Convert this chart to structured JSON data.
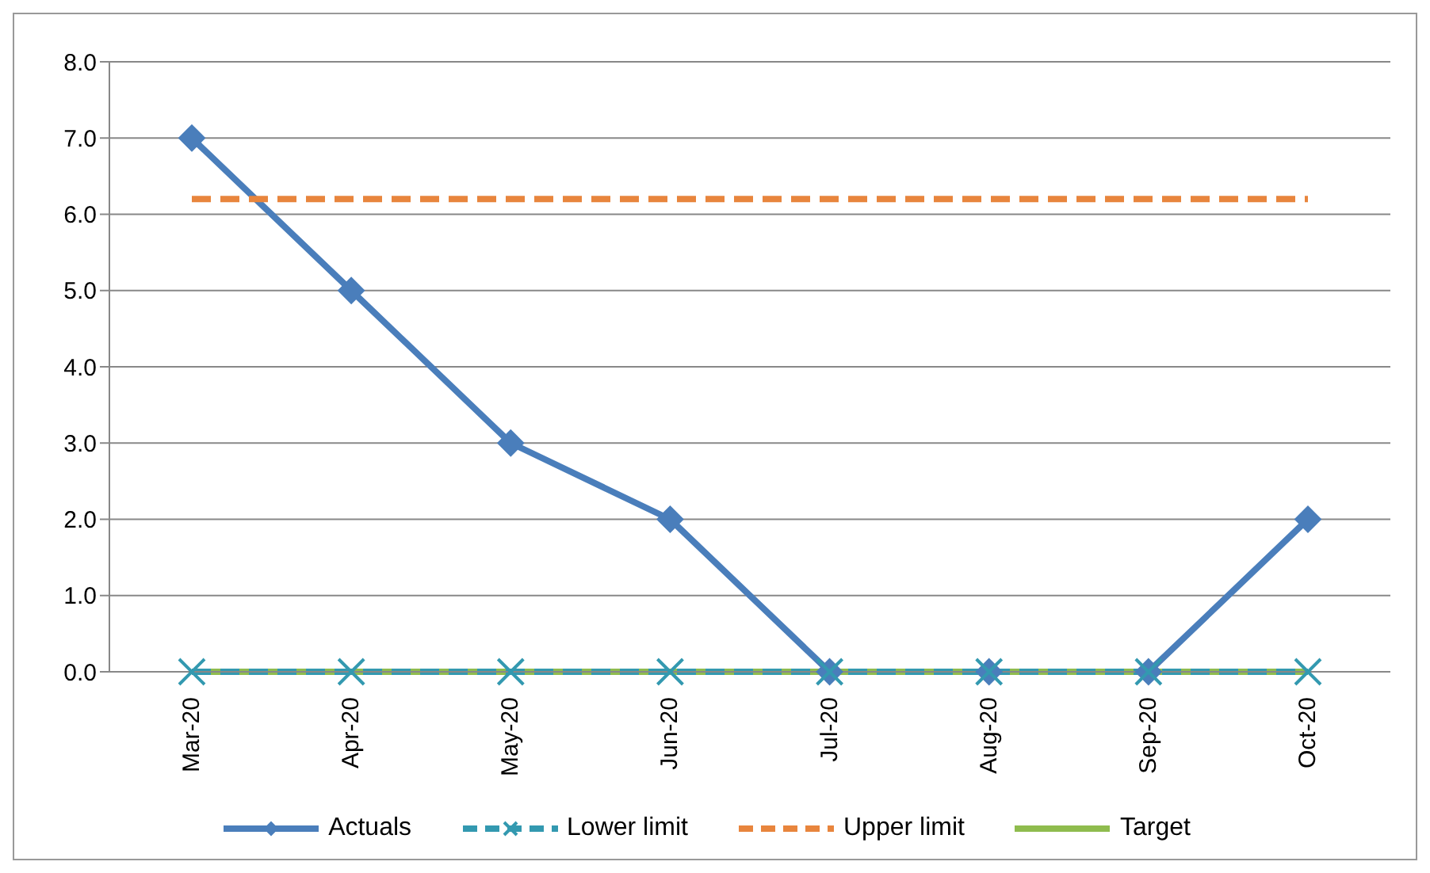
{
  "chart_data": {
    "type": "line",
    "categories": [
      "Mar-20",
      "Apr-20",
      "May-20",
      "Jun-20",
      "Jul-20",
      "Aug-20",
      "Sep-20",
      "Oct-20"
    ],
    "series": [
      {
        "name": "Actuals",
        "color": "#4a7ebb",
        "values": [
          7,
          5,
          3,
          2,
          0,
          0,
          0,
          2
        ],
        "marker": "diamond",
        "line_style": "solid"
      },
      {
        "name": "Lower limit",
        "color": "#3399b0",
        "values": [
          0,
          0,
          0,
          0,
          0,
          0,
          0,
          0
        ],
        "marker": "cross",
        "line_style": "dashed"
      },
      {
        "name": "Upper limit",
        "color": "#e8853d",
        "values": [
          6.2,
          6.2,
          6.2,
          6.2,
          6.2,
          6.2,
          6.2,
          6.2
        ],
        "marker": "none",
        "line_style": "dashed"
      },
      {
        "name": "Target",
        "color": "#8fbc4e",
        "values": [
          0,
          0,
          0,
          0,
          0,
          0,
          0,
          0
        ],
        "marker": "none",
        "line_style": "solid"
      }
    ],
    "ylim": [
      0,
      8
    ],
    "yticks": [
      {
        "value": 0,
        "label": "0.0"
      },
      {
        "value": 1,
        "label": "1.0"
      },
      {
        "value": 2,
        "label": "2.0"
      },
      {
        "value": 3,
        "label": "3.0"
      },
      {
        "value": 4,
        "label": "4.0"
      },
      {
        "value": 5,
        "label": "5.0"
      },
      {
        "value": 6,
        "label": "6.0"
      },
      {
        "value": 7,
        "label": "7.0"
      },
      {
        "value": 8,
        "label": "8.0"
      }
    ],
    "grid": "y",
    "legend": "bottom"
  }
}
